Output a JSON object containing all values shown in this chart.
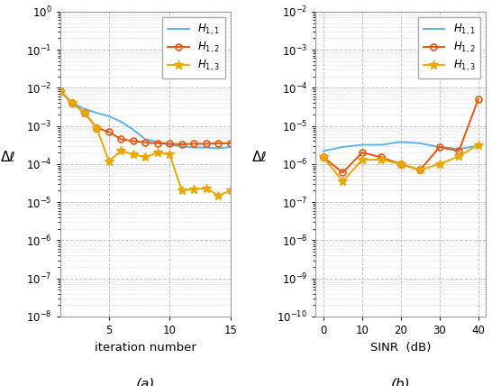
{
  "subplot_a": {
    "x": [
      1,
      2,
      3,
      4,
      5,
      6,
      7,
      8,
      9,
      10,
      11,
      12,
      13,
      14,
      15
    ],
    "H11": [
      0.008,
      0.004,
      0.0028,
      0.0022,
      0.0018,
      0.0013,
      0.0008,
      0.00045,
      0.00038,
      0.00032,
      0.00029,
      0.00027,
      0.00027,
      0.00026,
      0.00028
    ],
    "H12": [
      0.008,
      0.004,
      0.0022,
      0.0009,
      0.0007,
      0.00045,
      0.0004,
      0.00037,
      0.00035,
      0.00034,
      0.00033,
      0.00034,
      0.00034,
      0.00035,
      0.00035
    ],
    "H13": [
      0.008,
      0.004,
      0.0022,
      0.0009,
      0.00012,
      0.00022,
      0.00018,
      0.00015,
      0.0002,
      0.00018,
      2e-05,
      2.2e-05,
      2.3e-05,
      1.5e-05,
      2e-05
    ],
    "xlim": [
      1,
      15
    ],
    "ylim": [
      1e-08,
      1.0
    ],
    "xlabel": "iteration number",
    "ylabel": "Δℓ",
    "caption": "(a)",
    "xticks": [
      5,
      10,
      15
    ]
  },
  "subplot_b": {
    "x": [
      0,
      5,
      10,
      15,
      20,
      25,
      30,
      35,
      40
    ],
    "H11": [
      2.2e-06,
      2.8e-06,
      3.2e-06,
      3.2e-06,
      3.8e-06,
      3.5e-06,
      2.8e-06,
      2.5e-06,
      3e-06
    ],
    "H12": [
      1.5e-06,
      6e-07,
      2e-06,
      1.5e-06,
      1e-06,
      7e-07,
      2.8e-06,
      2.2e-06,
      5e-05
    ],
    "H13": [
      1.5e-06,
      3.5e-07,
      1.3e-06,
      1.3e-06,
      1e-06,
      7e-07,
      1e-06,
      1.6e-06,
      3.2e-06
    ],
    "xlim": [
      -2,
      42
    ],
    "ylim": [
      1e-10,
      0.01
    ],
    "xlabel": "SINR  (dB)",
    "ylabel": "Δℓ",
    "caption": "(b)",
    "xticks": [
      0,
      10,
      20,
      30,
      40
    ]
  },
  "colors": {
    "H11": "#5ab4e5",
    "H12": "#e8540a",
    "H13": "#e8a800"
  },
  "background_color": "#ffffff",
  "grid_color": "#bbbbbb"
}
